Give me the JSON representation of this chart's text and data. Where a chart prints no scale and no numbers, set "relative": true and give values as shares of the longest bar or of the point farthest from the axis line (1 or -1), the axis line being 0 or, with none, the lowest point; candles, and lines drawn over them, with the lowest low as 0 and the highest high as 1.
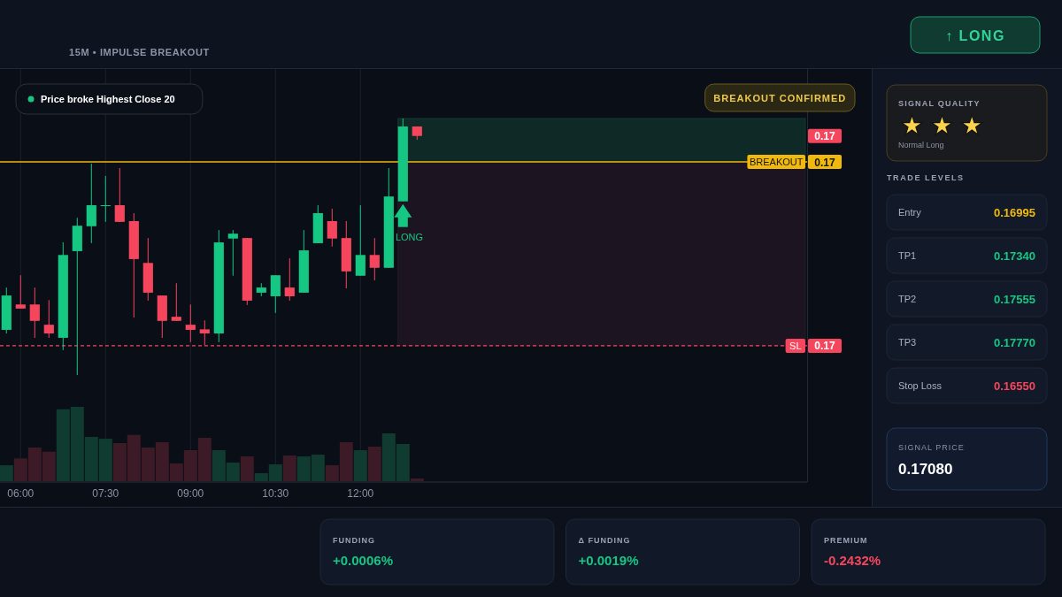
{
  "chart_data": [
    {
      "type": "other",
      "subtitle": "15M • IMPULSE BREAKOUT",
      "annotations": [
        "↑ LONG"
      ]
    },
    {
      "type": "candlestick",
      "x": [
        5.75,
        6,
        6.25,
        6.5,
        6.75,
        7,
        7.25,
        7.5,
        7.75,
        8,
        8.25,
        8.5,
        8.75,
        9,
        9.25,
        9.5,
        9.75,
        10,
        10.25,
        10.5,
        10.75,
        11,
        11.25,
        11.5,
        11.75,
        12,
        12.25,
        12.5,
        12.75,
        13
      ],
      "ohlc": [
        [
          0.176,
          0.341,
          0.162,
          0.31
        ],
        [
          0.275,
          0.389,
          0.259,
          0.259
        ],
        [
          0.275,
          0.341,
          0.145,
          0.211
        ],
        [
          0.196,
          0.292,
          0.145,
          0.162
        ],
        [
          0.145,
          0.517,
          0.097,
          0.468
        ],
        [
          0.483,
          0.613,
          0,
          0.582
        ],
        [
          0.58,
          0.824,
          0.514,
          0.662
        ],
        [
          0.659,
          0.776,
          0.597,
          0.662
        ],
        [
          0.662,
          0.807,
          0.597,
          0.597
        ],
        [
          0.6,
          0.631,
          0.224,
          0.452
        ],
        [
          0.437,
          0.534,
          0.29,
          0.321
        ],
        [
          0.31,
          0.31,
          0.145,
          0.211
        ],
        [
          0.227,
          0.358,
          0.211,
          0.211
        ],
        [
          0.196,
          0.275,
          0.128,
          0.176
        ],
        [
          0.178,
          0.213,
          0.116,
          0.162
        ],
        [
          0.162,
          0.565,
          0.128,
          0.517
        ],
        [
          0.532,
          0.565,
          0.387,
          0.551
        ],
        [
          0.534,
          0.534,
          0.273,
          0.29
        ],
        [
          0.321,
          0.358,
          0.307,
          0.341
        ],
        [
          0.307,
          0.389,
          0.242,
          0.389
        ],
        [
          0.341,
          0.455,
          0.29,
          0.307
        ],
        [
          0.321,
          0.565,
          0.321,
          0.486
        ],
        [
          0.514,
          0.662,
          0.514,
          0.631
        ],
        [
          0.6,
          0.648,
          0.501,
          0.532
        ],
        [
          0.534,
          0.6,
          0.338,
          0.404
        ],
        [
          0.387,
          0.662,
          0.387,
          0.468
        ],
        [
          0.468,
          0.534,
          0.369,
          0.418
        ],
        [
          0.418,
          0.807,
          0.418,
          0.696
        ],
        [
          0.677,
          1,
          0.677,
          0.969
        ],
        [
          0.969,
          0.969,
          0.917,
          0.932
        ]
      ],
      "colors": [
        "#16c784",
        "#f6465d",
        "#f6465d",
        "#f6465d",
        "#16c784",
        "#16c784",
        "#16c784",
        "#16c784",
        "#f6465d",
        "#f6465d",
        "#f6465d",
        "#f6465d",
        "#f6465d",
        "#f6465d",
        "#f6465d",
        "#16c784",
        "#16c784",
        "#f6465d",
        "#16c784",
        "#16c784",
        "#f6465d",
        "#16c784",
        "#16c784",
        "#f6465d",
        "#f6465d",
        "#16c784",
        "#f6465d",
        "#16c784",
        "#16c784",
        "#f6465d"
      ],
      "relative": true,
      "xlim": [
        5.636,
        19.886
      ],
      "xticks": [
        6,
        7.5,
        9,
        10.5,
        12
      ],
      "tick_labels": false,
      "grid": "x",
      "ref_lines": [
        {
          "axis": "y",
          "value": 0.831,
          "label": "BREAKOUT",
          "color": "#f0b90b",
          "line_style": "solid"
        },
        {
          "axis": "y",
          "value": 0.114,
          "label": "SL",
          "color": "#f6465d",
          "line_style": "dashed"
        }
      ],
      "bands": [
        {
          "axis": "y",
          "from": 0.831,
          "to": 1,
          "color": "#0f2a26"
        },
        {
          "axis": "y",
          "from": 0.114,
          "to": 0.831,
          "color": "#1c1420"
        }
      ],
      "annotations": [
        "Price broke Highest Close 20",
        "BREAKOUT CONFIRMED",
        "LONG",
        {
          "text": "0.17",
          "y": 0.932
        },
        {
          "text": "0.17",
          "y": 0.831
        },
        {
          "text": "0.17",
          "y": 0.114
        }
      ]
    },
    {
      "type": "bar",
      "x": [
        5.75,
        6,
        6.25,
        6.5,
        6.75,
        7,
        7.25,
        7.5,
        7.75,
        8,
        8.25,
        8.5,
        8.75,
        9,
        9.25,
        9.5,
        9.75,
        10,
        10.25,
        10.5,
        10.75,
        11,
        11.25,
        11.5,
        11.75,
        12,
        12.25,
        12.5,
        12.75,
        13
      ],
      "values": [
        0.214,
        0.306,
        0.452,
        0.396,
        0.968,
        1,
        0.595,
        0.571,
        0.512,
        0.623,
        0.452,
        0.524,
        0.238,
        0.417,
        0.583,
        0.417,
        0.25,
        0.333,
        0.107,
        0.226,
        0.345,
        0.333,
        0.357,
        0.214,
        0.524,
        0.417,
        0.464,
        0.643,
        0.5,
        0.036
      ],
      "colors": [
        "#0f3b30",
        "#3d1b26",
        "#3d1b26",
        "#3d1b26",
        "#0f3b30",
        "#0f3b30",
        "#0f3b30",
        "#0f3b30",
        "#3d1b26",
        "#3d1b26",
        "#3d1b26",
        "#3d1b26",
        "#3d1b26",
        "#3d1b26",
        "#3d1b26",
        "#0f3b30",
        "#0f3b30",
        "#3d1b26",
        "#0f3b30",
        "#0f3b30",
        "#3d1b26",
        "#0f3b30",
        "#0f3b30",
        "#3d1b26",
        "#3d1b26",
        "#0f3b30",
        "#3d1b26",
        "#0f3b30",
        "#0f3b30",
        "#3d1b26"
      ],
      "relative": true,
      "xlim": [
        5.636,
        19.886
      ],
      "xticks": [
        {
          "value": 6,
          "label": "06:00"
        },
        {
          "value": 7.5,
          "label": "07:30"
        },
        {
          "value": 9,
          "label": "09:00"
        },
        {
          "value": 10.5,
          "label": "10:30"
        },
        {
          "value": 12,
          "label": "12:00"
        }
      ],
      "grid": "x"
    },
    {
      "type": "other",
      "title": "SIGNAL QUALITY",
      "annotations": [
        "★★★",
        "Normal Long"
      ]
    },
    {
      "type": "other",
      "title": "TRADE LEVELS",
      "categories": [
        "Entry",
        "TP1",
        "TP2",
        "TP3",
        "Stop Loss"
      ],
      "value_labels": [
        "0.16995",
        "0.17340",
        "0.17555",
        "0.17770",
        "0.16550"
      ]
    },
    {
      "type": "other",
      "title": "SIGNAL PRICE",
      "annotations": [
        "0.17080"
      ]
    },
    {
      "type": "other",
      "categories": [
        "FUNDING",
        "Δ FUNDING",
        "PREMIUM"
      ],
      "value_labels": [
        "+0.0006%",
        "+0.0019%",
        "-0.2432%"
      ]
    }
  ]
}
